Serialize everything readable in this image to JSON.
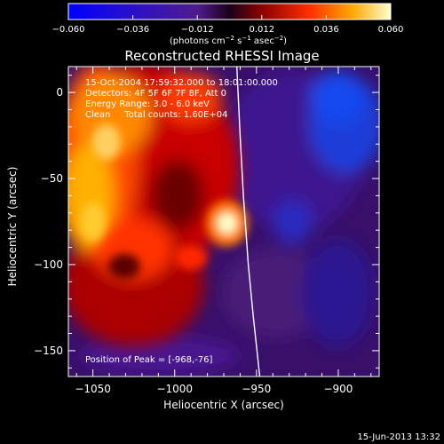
{
  "colorbar": {
    "ticks": [
      "−0.060",
      "−0.036",
      "−0.012",
      "0.012",
      "0.036",
      "0.060"
    ],
    "unit_html": "(photons cm⁻² s⁻¹ asec⁻²)",
    "range": [
      -0.06,
      0.06
    ]
  },
  "chart_data": {
    "type": "heatmap",
    "title": "Reconstructed RHESSI Image",
    "xlabel": "Heliocentric X (arcsec)",
    "ylabel": "Heliocentric Y (arcsec)",
    "xlim": [
      -1065,
      -875
    ],
    "ylim": [
      -165,
      15
    ],
    "xticks": [
      {
        "value": -1050,
        "label": "−1050"
      },
      {
        "value": -1000,
        "label": "−1000"
      },
      {
        "value": -950,
        "label": "−950"
      },
      {
        "value": -900,
        "label": "−900"
      }
    ],
    "yticks": [
      {
        "value": 0,
        "label": "0"
      },
      {
        "value": -50,
        "label": "−50"
      },
      {
        "value": -100,
        "label": "−100"
      },
      {
        "value": -150,
        "label": "−150"
      }
    ],
    "annotations": [
      "15-Oct-2004 17:59:32.000 to 18:01:00.000",
      "Detectors: 4F 5F 6F 7F 8F, Att 0",
      "Energy Range: 3.0 - 6.0 keV",
      "Clean     Total counts: 1.60E+04"
    ],
    "peak_label": "Position of Peak = [-968,-76]",
    "peak": [
      -968,
      -76
    ],
    "limb_points": [
      [
        -962,
        15
      ],
      [
        -960,
        -25
      ],
      [
        -958,
        -60
      ],
      [
        -955,
        -100
      ],
      [
        -952,
        -130
      ],
      [
        -948,
        -165
      ]
    ]
  },
  "footer": {
    "date": "15-Jun-2013 13:32"
  }
}
